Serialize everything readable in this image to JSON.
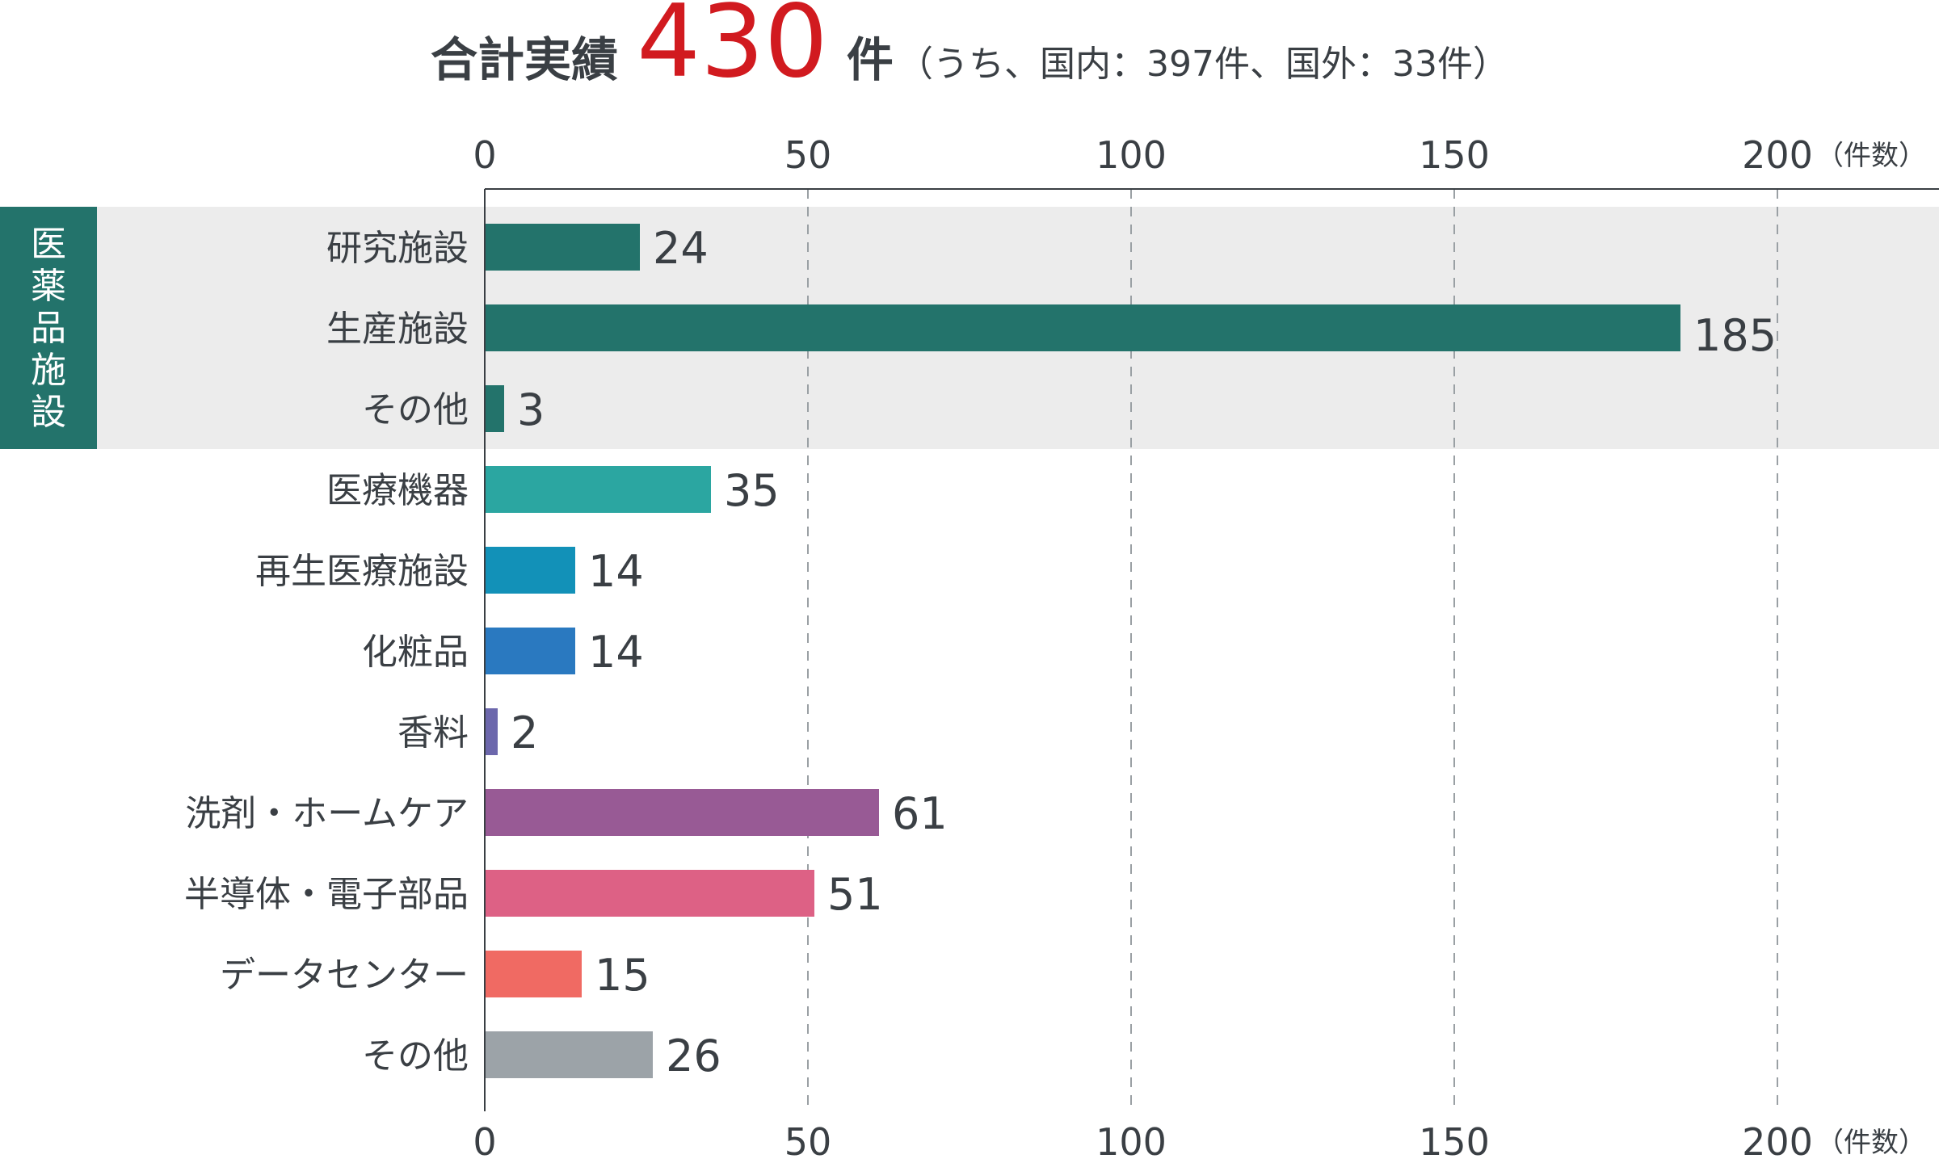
{
  "header": {
    "label": "合計実績",
    "total": "430",
    "unit": "件",
    "breakdown": "（うち、国内：397件、国外：33件）"
  },
  "group": {
    "label": "医薬品施設",
    "color": "#23736b"
  },
  "chart_data": {
    "type": "bar",
    "orientation": "horizontal",
    "title": "",
    "xlabel": "（件数）",
    "ylabel": "",
    "xlim": [
      0,
      225
    ],
    "xticks": [
      0,
      50,
      100,
      150,
      200
    ],
    "grid": true,
    "categories": [
      "研究施設",
      "生産施設",
      "その他",
      "医療機器",
      "再生医療施設",
      "化粧品",
      "香料",
      "洗剤・ホームケア",
      "半導体・電子部品",
      "データセンター",
      "その他"
    ],
    "values": [
      24,
      185,
      3,
      35,
      14,
      14,
      2,
      61,
      51,
      15,
      26
    ],
    "value_labels": [
      "24",
      "185",
      "3",
      "35",
      "14",
      "14",
      "2",
      "61",
      "51",
      "15",
      "26"
    ],
    "colors": [
      "#23736b",
      "#23736b",
      "#23736b",
      "#2ba6a1",
      "#1291b8",
      "#2a79c0",
      "#6c67ac",
      "#985a95",
      "#dd6185",
      "#f06a63",
      "#9ca3a8"
    ],
    "group_indices": [
      0,
      1,
      2
    ]
  }
}
